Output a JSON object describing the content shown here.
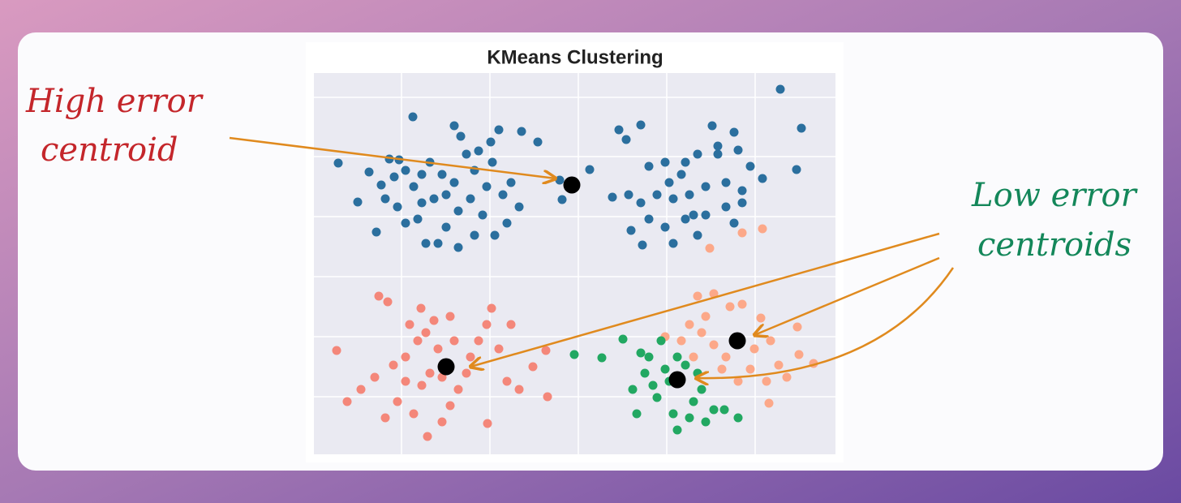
{
  "chart_data": {
    "type": "scatter",
    "title": "KMeans Clustering",
    "xlim": [
      0,
      64.3
    ],
    "ylim": [
      0,
      47
    ],
    "xticks": [
      10.8,
      21.7,
      32.6,
      43.5,
      54.4
    ],
    "yticks": [
      7.1,
      14.5,
      21.9,
      29.3,
      36.7,
      44.0
    ],
    "grid": true,
    "series": [
      {
        "color": "#2b6f9e",
        "x": [
          12.2,
          3.0,
          5.4,
          7.7,
          9.3,
          10.5,
          11.3,
          6.8,
          8.3,
          9.9,
          12.3,
          13.3,
          14.3,
          15.8,
          17.3,
          18.8,
          20.3,
          21.8,
          22.8,
          25.6,
          27.6,
          17.3,
          18.1,
          19.8,
          21.3,
          23.3,
          24.3,
          25.3,
          23.8,
          22.3,
          20.8,
          19.3,
          17.8,
          16.3,
          15.3,
          13.8,
          12.8,
          11.3,
          10.3,
          8.8,
          13.3,
          14.8,
          16.3,
          17.8,
          19.8,
          22.0,
          30.3,
          34.0,
          30.6,
          57.5,
          60.1,
          59.5,
          37.6,
          40.3,
          38.5,
          49.1,
          51.8,
          41.3,
          43.3,
          45.3,
          47.3,
          49.8,
          52.3,
          53.8,
          55.3,
          52.8,
          50.8,
          48.3,
          46.3,
          44.3,
          42.3,
          40.3,
          38.8,
          36.8,
          41.3,
          43.3,
          45.8,
          48.3,
          50.8,
          52.8,
          51.8,
          47.3,
          44.3,
          40.5,
          39.1,
          49.8,
          45.8,
          43.8,
          46.8
        ],
        "values": [
          41.6,
          35.9,
          31.1,
          27.4,
          36.4,
          36.3,
          35.0,
          34.8,
          33.2,
          34.2,
          33.0,
          34.5,
          36.0,
          34.5,
          33.5,
          37.0,
          37.4,
          38.5,
          40.0,
          39.8,
          38.5,
          40.5,
          39.2,
          35.0,
          33.0,
          32.0,
          33.5,
          30.5,
          28.5,
          27.0,
          29.5,
          31.5,
          30.0,
          28.0,
          26.0,
          26.0,
          29.0,
          28.5,
          30.5,
          31.5,
          31.0,
          31.5,
          32.0,
          25.5,
          27.0,
          36.0,
          33.8,
          35.1,
          31.4,
          45.0,
          40.2,
          35.1,
          40.0,
          40.6,
          38.8,
          40.5,
          39.7,
          35.5,
          36.0,
          34.5,
          37.0,
          37.0,
          37.5,
          35.5,
          34.0,
          32.5,
          33.5,
          33.0,
          32.0,
          31.5,
          32.0,
          31.0,
          32.0,
          31.7,
          29.0,
          28.0,
          29.0,
          29.5,
          30.5,
          31.0,
          28.5,
          27.0,
          26.0,
          25.8,
          27.6,
          38.0,
          36.0,
          33.5,
          29.5
        ]
      },
      {
        "color": "#f4877a",
        "x": [
          8.0,
          9.1,
          13.2,
          21.9,
          2.8,
          4.1,
          5.8,
          7.5,
          8.8,
          10.3,
          11.3,
          11.8,
          12.8,
          13.8,
          14.8,
          15.3,
          14.3,
          13.3,
          12.3,
          14.0,
          15.8,
          16.8,
          17.8,
          18.8,
          19.3,
          20.3,
          21.3,
          22.8,
          23.8,
          25.3,
          27.0,
          28.6,
          28.8,
          21.4,
          17.3,
          15.8,
          11.3,
          9.8,
          16.8,
          24.3
        ],
        "values": [
          19.5,
          18.8,
          18.0,
          18.0,
          12.8,
          6.5,
          8.0,
          9.5,
          4.5,
          6.5,
          12.0,
          16.0,
          14.0,
          15.0,
          16.5,
          13.0,
          10.0,
          8.5,
          5.0,
          2.2,
          4.0,
          6.0,
          8.0,
          10.0,
          12.0,
          14.0,
          16.0,
          13.0,
          9.0,
          8.0,
          10.8,
          12.8,
          7.1,
          3.8,
          14.0,
          9.5,
          9.0,
          11.0,
          17.0,
          16.0
        ]
      },
      {
        "color": "#fca889",
        "x": [
          48.8,
          52.8,
          55.3,
          47.3,
          49.3,
          51.3,
          52.8,
          55.1,
          59.6,
          59.8,
          61.6,
          46.3,
          47.8,
          49.3,
          50.8,
          54.3,
          56.3,
          57.3,
          55.8,
          53.8,
          52.3,
          56.1,
          48.3,
          45.3,
          50.3,
          58.3,
          46.8,
          43.3
        ],
        "values": [
          25.4,
          27.3,
          27.8,
          19.5,
          19.8,
          18.2,
          18.5,
          16.8,
          15.7,
          12.3,
          11.2,
          16.0,
          15.0,
          13.5,
          12.0,
          13.0,
          14.0,
          11.0,
          9.0,
          10.5,
          9.0,
          6.3,
          17.0,
          14.0,
          10.5,
          9.5,
          12.0,
          14.5
        ]
      },
      {
        "color": "#22a862",
        "x": [
          32.1,
          35.5,
          38.1,
          39.8,
          39.3,
          40.8,
          41.3,
          42.8,
          42.3,
          43.8,
          44.3,
          44.8,
          46.3,
          46.8,
          47.8,
          48.3,
          49.3,
          50.6,
          52.3,
          45.8,
          43.3,
          40.3,
          47.3,
          41.8,
          44.8
        ],
        "values": [
          12.3,
          11.9,
          14.2,
          5.0,
          8.0,
          10.0,
          12.0,
          14.0,
          7.0,
          9.0,
          5.0,
          3.0,
          4.5,
          6.5,
          8.0,
          4.0,
          5.5,
          5.5,
          4.5,
          11.0,
          10.5,
          12.5,
          10.0,
          8.5,
          12.0
        ]
      }
    ],
    "centroids": {
      "color": "#000000",
      "x": [
        31.8,
        16.3,
        52.2,
        44.8
      ],
      "values": [
        33.2,
        10.8,
        14.0,
        9.2
      ]
    },
    "annotations": [
      {
        "lines": [
          "High error",
          "centroid"
        ],
        "color": "#c4262b"
      },
      {
        "lines": [
          "Low error",
          "centroids"
        ],
        "color": "#14875a"
      }
    ]
  }
}
